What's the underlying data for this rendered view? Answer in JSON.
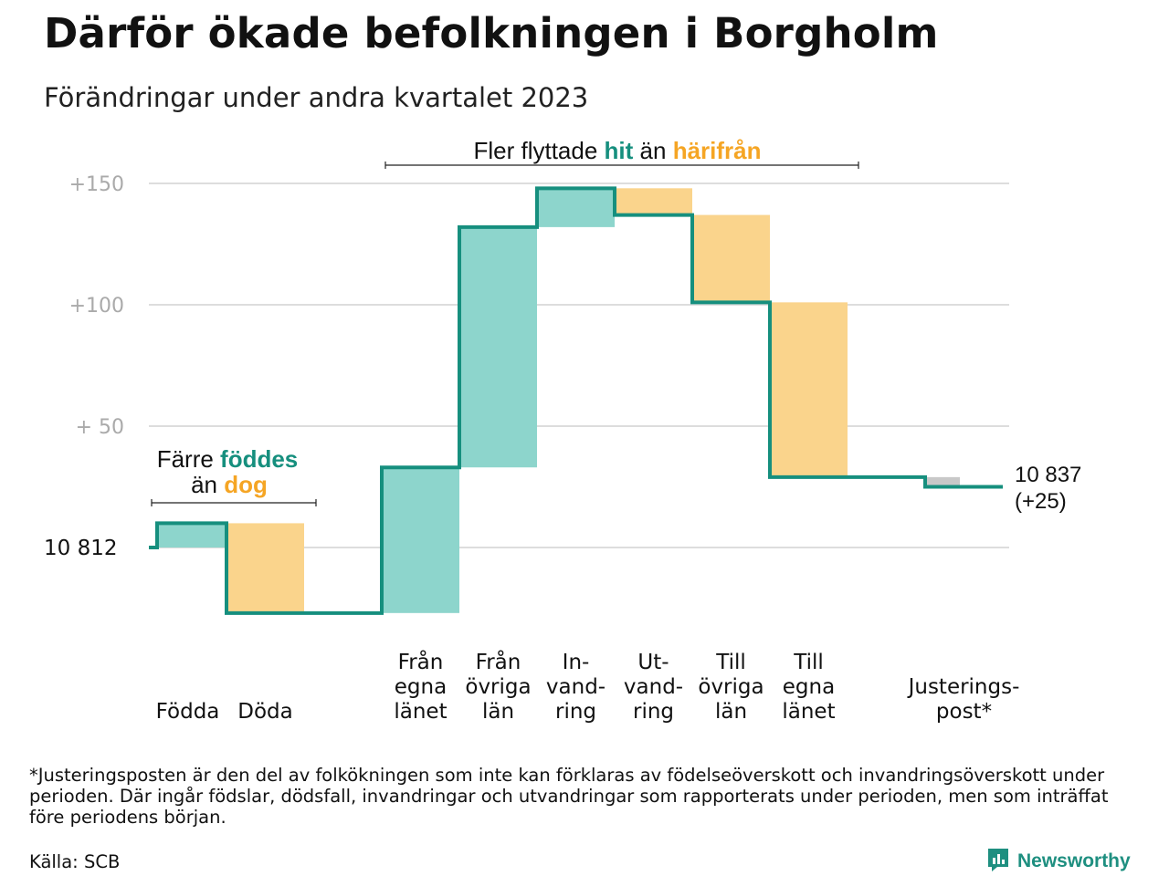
{
  "header": {
    "title": "Därför ökade befolkningen i Borgholm",
    "subtitle": "Förändringar under andra kvartalet 2023"
  },
  "colors": {
    "line": "#168f7e",
    "increase": "#8dd5cc",
    "decrease": "#fad48c",
    "adjustment": "#c8c8c8",
    "grid": "#dddddd",
    "teal_text": "#168f7e",
    "orange_text": "#f5a524"
  },
  "chart_data": {
    "type": "waterfall",
    "baseline": 10812,
    "baseline_label": "10  812",
    "ylim": [
      -27,
      152
    ],
    "yticks": [
      {
        "value": 150,
        "label": "+150"
      },
      {
        "value": 100,
        "label": "+100"
      },
      {
        "value": 50,
        "label": "+  50"
      }
    ],
    "steps": [
      {
        "key": "fodda",
        "label": [
          "Födda"
        ],
        "value": 10,
        "kind": "increase"
      },
      {
        "key": "doda",
        "label": [
          "Döda"
        ],
        "value": -37,
        "kind": "decrease"
      },
      {
        "key": "gap",
        "label": [],
        "value": 0,
        "kind": "gap"
      },
      {
        "key": "fran_egna",
        "label": [
          "Från",
          "egna",
          "länet"
        ],
        "value": 60,
        "kind": "increase"
      },
      {
        "key": "fran_ovriga",
        "label": [
          "Från",
          "övriga",
          "län"
        ],
        "value": 99,
        "kind": "increase"
      },
      {
        "key": "invandring",
        "label": [
          "In-",
          "vand-",
          "ring"
        ],
        "value": 16,
        "kind": "increase"
      },
      {
        "key": "utvandring",
        "label": [
          "Ut-",
          "vand-",
          "ring"
        ],
        "value": -11,
        "kind": "decrease"
      },
      {
        "key": "till_ovriga",
        "label": [
          "Till",
          "övriga",
          "län"
        ],
        "value": -36,
        "kind": "decrease"
      },
      {
        "key": "till_egna",
        "label": [
          "Till",
          "egna",
          "länet"
        ],
        "value": -72,
        "kind": "decrease"
      },
      {
        "key": "gap2",
        "label": [],
        "value": 0,
        "kind": "gap"
      },
      {
        "key": "justering",
        "label": [
          "Justerings-",
          "post*"
        ],
        "value": -4,
        "kind": "adjustment"
      }
    ],
    "end_label": [
      "10 837",
      "(+25)"
    ],
    "annotations": {
      "births": {
        "line1": "Färre",
        "teal": "föddes",
        "line2": "än",
        "orange": "dog"
      },
      "moves": {
        "prefix": "Fler flyttade",
        "teal": "hit",
        "mid": "än",
        "orange": "härifrån"
      }
    }
  },
  "footer": {
    "footnote": "*Justeringsposten är den del av folkökningen som inte kan förklaras av födelseöverskott och invandringsöverskott under perioden. Där ingår födslar, dödsfall, invandringar och utvandringar som rapporterats under perioden, men som inträffat före periodens början.",
    "source": "Källa: SCB",
    "brand": "Newsworthy",
    "brand_icon": "newsworthy-logo-icon"
  }
}
